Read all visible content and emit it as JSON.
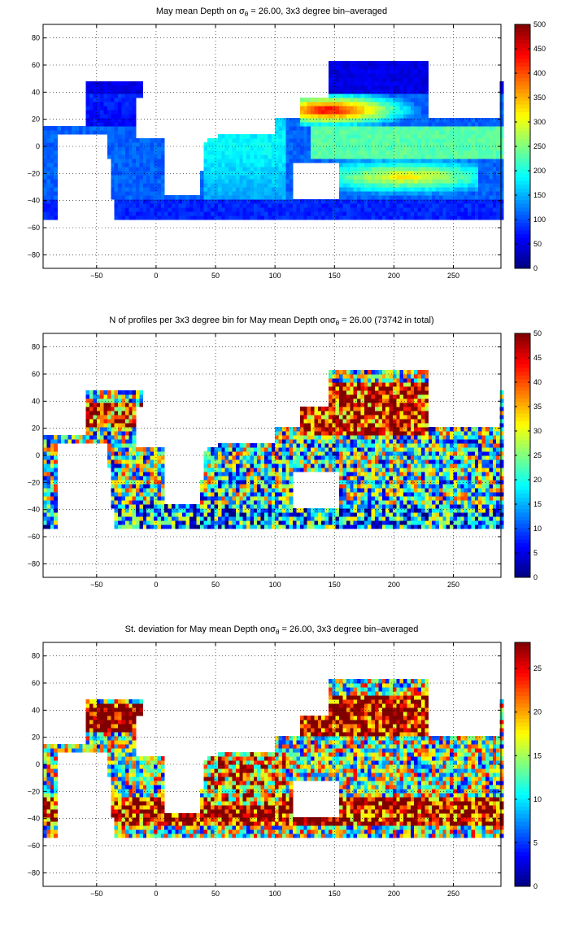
{
  "chart_data": [
    {
      "type": "heatmap",
      "title": {
        "prefix": "May mean Depth on ",
        "sigma": "σ",
        "theta": "θ",
        "suffix": " = 26.00, 3x3 degree bin–averaged"
      },
      "xlim": [
        -95,
        290
      ],
      "ylim": [
        -90,
        90
      ],
      "xticks": [
        -50,
        0,
        50,
        100,
        150,
        200,
        250
      ],
      "yticks": [
        -80,
        -60,
        -40,
        -20,
        0,
        20,
        40,
        60,
        80
      ],
      "grid": true,
      "colorbar": {
        "min": 0,
        "max": 500,
        "ticks": [
          0,
          50,
          100,
          150,
          200,
          250,
          300,
          350,
          400,
          450,
          500
        ],
        "colormap": "jet",
        "placement": "right"
      },
      "value_range": [
        0,
        500
      ]
    },
    {
      "type": "heatmap",
      "title": {
        "prefix": "N of profiles per 3x3 degree bin for May mean Depth on",
        "sigma": "σ",
        "theta": "θ",
        "suffix": " = 26.00 (73742 in total)"
      },
      "xlim": [
        -95,
        290
      ],
      "ylim": [
        -90,
        90
      ],
      "xticks": [
        -50,
        0,
        50,
        100,
        150,
        200,
        250
      ],
      "yticks": [
        -80,
        -60,
        -40,
        -20,
        0,
        20,
        40,
        60,
        80
      ],
      "grid": true,
      "colorbar": {
        "min": 0,
        "max": 50,
        "ticks": [
          0,
          5,
          10,
          15,
          20,
          25,
          30,
          35,
          40,
          45,
          50
        ],
        "colormap": "jet",
        "placement": "right"
      },
      "value_range": [
        0,
        50
      ]
    },
    {
      "type": "heatmap",
      "title": {
        "prefix": "St. deviation for May mean Depth on",
        "sigma": "σ",
        "theta": "θ",
        "suffix": " = 26.00, 3x3 degree bin–averaged"
      },
      "xlim": [
        -95,
        290
      ],
      "ylim": [
        -90,
        90
      ],
      "xticks": [
        -50,
        0,
        50,
        100,
        150,
        200,
        250
      ],
      "yticks": [
        -80,
        -60,
        -40,
        -20,
        0,
        20,
        40,
        60,
        80
      ],
      "grid": true,
      "colorbar": {
        "min": 0,
        "max": 28,
        "ticks": [
          0,
          5,
          10,
          15,
          20,
          25
        ],
        "colormap": "jet",
        "placement": "right"
      },
      "value_range": [
        0,
        28
      ]
    }
  ],
  "colors": {
    "background": "#ffffff",
    "axis": "#000000",
    "land": "#ffffff",
    "grid": "#000000"
  }
}
